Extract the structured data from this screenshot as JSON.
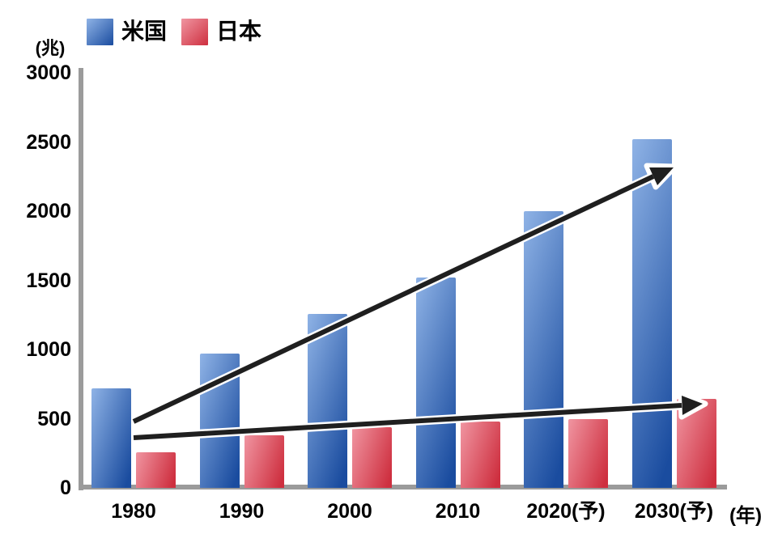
{
  "chart_data": {
    "type": "bar",
    "title": "",
    "ylabel": "(兆)",
    "xlabel": "(年)",
    "ylim": [
      0,
      3000
    ],
    "yticks": [
      3000,
      2500,
      2000,
      1500,
      1000,
      500,
      0
    ],
    "grid": false,
    "legend_position": "top-left",
    "categories": [
      "1980",
      "1990",
      "2000",
      "2010",
      "2020(予)",
      "2030(予)"
    ],
    "series": [
      {
        "key": "us",
        "name": "米国",
        "color_light": "#8FB3E6",
        "color_dark": "#1A4C9F",
        "values": [
          720,
          970,
          1260,
          1520,
          2000,
          2520
        ]
      },
      {
        "key": "japan",
        "name": "日本",
        "color_light": "#F095A1",
        "color_dark": "#CE2F3F",
        "values": [
          260,
          380,
          440,
          480,
          500,
          645
        ]
      }
    ],
    "annotations": [
      {
        "key": "us-trend-arrow"
      },
      {
        "key": "japan-trend-arrow"
      }
    ]
  },
  "colors": {
    "axis": "#9B9B9B",
    "arrow": "#1F1F1F",
    "text": "#000000",
    "background": "#FFFFFF"
  }
}
